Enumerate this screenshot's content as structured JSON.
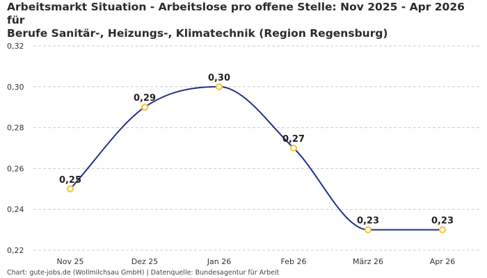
{
  "chart_data": {
    "type": "line",
    "title_line1": "Arbeitsmarkt Situation - Arbeitslose pro offene Stelle: Nov 2025 - Apr 2026 für",
    "title_line2": "Berufe Sanitär-, Heizungs-, Klimatechnik (Region Regensburg)",
    "categories": [
      "Nov 25",
      "Dez 25",
      "Jan 26",
      "Feb 26",
      "März 26",
      "Apr 26"
    ],
    "values": [
      0.25,
      0.29,
      0.3,
      0.27,
      0.23,
      0.23
    ],
    "data_labels": [
      "0,25",
      "0,29",
      "0,30",
      "0,27",
      "0,23",
      "0,23"
    ],
    "ylim": [
      0.22,
      0.32
    ],
    "yticks": [
      0.22,
      0.24,
      0.26,
      0.28,
      0.3,
      0.32
    ],
    "ytick_labels": [
      "0,22",
      "0,24",
      "0,26",
      "0,28",
      "0,30",
      "0,32"
    ],
    "grid": true,
    "line_color": "#1f2f8a",
    "marker_color": "#f2c62b",
    "grid_color": "#cccccc"
  },
  "footer": "Chart: gute-jobs.de (Wollmilchsau GmbH) | Datenquelle: Bundesagentur für Arbeit"
}
